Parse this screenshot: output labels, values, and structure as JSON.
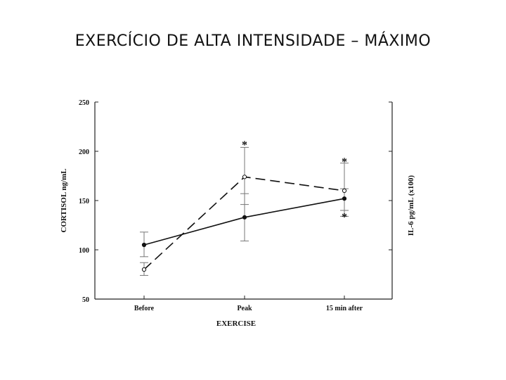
{
  "slide_title": "EXERCÍCIO DE ALTA INTENSIDADE – MÁXIMO",
  "chart_data": {
    "type": "line",
    "categories": [
      "Before",
      "Peak",
      "15 min after"
    ],
    "xlabel": "EXERCISE",
    "ylabel_left": "CORTISOL ng/mL",
    "ylabel_right": "IL-6 pg/mL (x100)",
    "ylim": [
      50,
      250
    ],
    "yticks": [
      "50",
      "100",
      "150",
      "200",
      "250"
    ],
    "yticks_values": [
      50,
      100,
      150,
      200,
      250
    ],
    "grid": false,
    "series": [
      {
        "style": "solid",
        "values": [
          105,
          133,
          152
        ],
        "err_low": [
          93,
          109,
          140
        ],
        "err_high": [
          118,
          157,
          162
        ],
        "markers": "filled"
      },
      {
        "style": "dashed",
        "values": [
          80,
          174,
          160
        ],
        "err_low": [
          74,
          146,
          134
        ],
        "err_high": [
          87,
          204,
          188
        ],
        "markers": "open"
      }
    ],
    "annotations": [
      {
        "text": "*",
        "category": "Peak",
        "y": 207
      },
      {
        "text": "*",
        "category": "15 min after",
        "y": 190
      },
      {
        "text": "*",
        "category": "15 min after",
        "y": 134
      }
    ]
  }
}
